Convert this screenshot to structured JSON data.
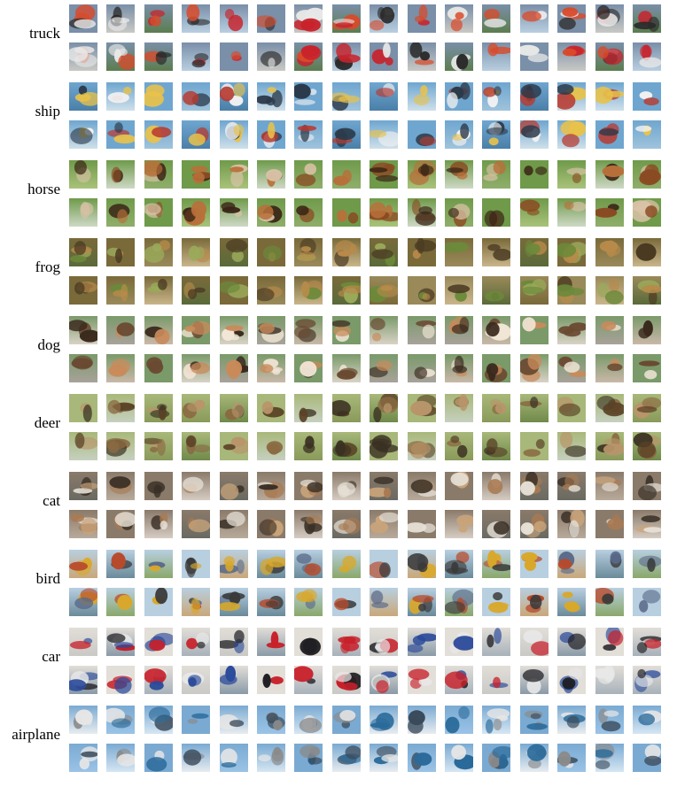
{
  "figure": {
    "images_per_row": 16,
    "rows_per_class": 2,
    "classes": [
      {
        "label": "truck",
        "palette": {
          "bg": [
            "#7a8fa8",
            "#c9c9c4",
            "#5c7d4f",
            "#b9cfe0"
          ],
          "fg": [
            "#c8232c",
            "#e8e8e8",
            "#2a2a2a",
            "#d94a2a"
          ]
        }
      },
      {
        "label": "ship",
        "palette": {
          "bg": [
            "#6fa6cf",
            "#9fc3dc",
            "#4a7fa8",
            "#cfe0ea"
          ],
          "fg": [
            "#f2f2f2",
            "#b83a30",
            "#2b3a4a",
            "#e8c24a"
          ]
        }
      },
      {
        "label": "horse",
        "palette": {
          "bg": [
            "#6f9a4a",
            "#a9c27a",
            "#cfd9c6",
            "#8fae6a"
          ],
          "fg": [
            "#8a4a22",
            "#3a2416",
            "#b8703a",
            "#d9c2a6"
          ]
        }
      },
      {
        "label": "frog",
        "palette": {
          "bg": [
            "#7a6a3a",
            "#9a8a5a",
            "#c9b58a",
            "#5a6a3a"
          ],
          "fg": [
            "#6b8a3a",
            "#b88a4a",
            "#4a3a22",
            "#9aaa5a"
          ]
        }
      },
      {
        "label": "dog",
        "palette": {
          "bg": [
            "#c9b8a8",
            "#7a9a6a",
            "#d9d2c6",
            "#a8a29a"
          ],
          "fg": [
            "#c98a5a",
            "#f2e6d6",
            "#6a4a32",
            "#3a2a1e"
          ]
        }
      },
      {
        "label": "deer",
        "palette": {
          "bg": [
            "#6f8a4a",
            "#a8b87a",
            "#c6d0bf",
            "#8a9a5a"
          ],
          "fg": [
            "#8a6a42",
            "#5a4226",
            "#b8956a",
            "#3a3022"
          ]
        }
      },
      {
        "label": "cat",
        "palette": {
          "bg": [
            "#b8aa9a",
            "#8a7a6a",
            "#d6ccc2",
            "#6a6a62"
          ],
          "fg": [
            "#a87a52",
            "#e6e0d6",
            "#3a3026",
            "#c9a47a"
          ]
        }
      },
      {
        "label": "bird",
        "palette": {
          "bg": [
            "#8aa86a",
            "#b8cfe0",
            "#c9a87a",
            "#6a8a9a"
          ],
          "fg": [
            "#3a3a3a",
            "#d9a82a",
            "#5a6a8a",
            "#b84a2a"
          ]
        }
      },
      {
        "label": "car",
        "palette": {
          "bg": [
            "#c9c9c6",
            "#8a9aa8",
            "#e2ded8",
            "#a8b2ba"
          ],
          "fg": [
            "#c8202a",
            "#2a4a9a",
            "#1e1e22",
            "#e8e8e8"
          ]
        }
      },
      {
        "label": "airplane",
        "palette": {
          "bg": [
            "#9ac3e6",
            "#d6e6f2",
            "#7aaad2",
            "#e8ecef"
          ],
          "fg": [
            "#3a4a5a",
            "#e6e6e6",
            "#2a6a9a",
            "#8a8a8a"
          ]
        }
      }
    ]
  }
}
